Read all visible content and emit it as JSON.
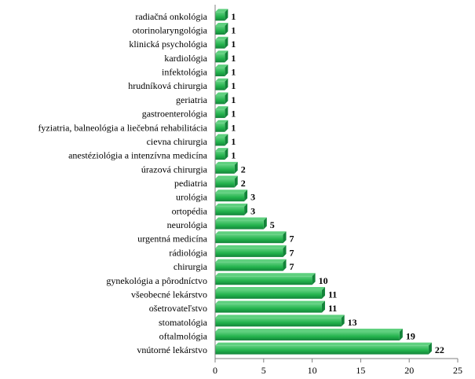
{
  "chart_data": {
    "type": "bar",
    "orientation": "horizontal",
    "categories": [
      "radiačná onkológia",
      "otorinolaryngológia",
      "klinická psychológia",
      "kardiológia",
      "infektológia",
      "hrudníková chirurgia",
      "geriatria",
      "gastroenterológia",
      "fyziatria, balneológia a liečebná rehabilitácia",
      "cievna chirurgia",
      "anestéziológia a intenzívna medicína",
      "úrazová chirurgia",
      "pediatria",
      "urológia",
      "ortopédia",
      "neurológia",
      "urgentná medicína",
      "rádiológia",
      "chirurgia",
      "gynekológia a pôrodníctvo",
      "všeobecné lekárstvo",
      "ošetrovateľstvo",
      "stomatológia",
      "oftalmológia",
      "vnútorné lekárstvo"
    ],
    "values": [
      1,
      1,
      1,
      1,
      1,
      1,
      1,
      1,
      1,
      1,
      1,
      2,
      2,
      3,
      3,
      5,
      7,
      7,
      7,
      10,
      11,
      11,
      13,
      19,
      22
    ],
    "data_labels": [
      "1",
      "1",
      "1",
      "1",
      "1",
      "1",
      "1",
      "1",
      "1",
      "1",
      "1",
      "2",
      "2",
      "3",
      "3",
      "5",
      "7",
      "7",
      "7",
      "10",
      "11",
      "11",
      "13",
      "19",
      "22"
    ],
    "x_ticks": [
      0,
      5,
      10,
      15,
      20,
      25
    ],
    "x_tick_labels": [
      "0",
      "5",
      "10",
      "15",
      "20",
      "25"
    ],
    "xlim": [
      0,
      25
    ],
    "title": "",
    "xlabel": "",
    "ylabel": "",
    "grid": false,
    "legend": "none",
    "bar_color": "#22b24c",
    "bar_top_color": "#5fd07f",
    "bar_dark_color": "#13843a"
  }
}
